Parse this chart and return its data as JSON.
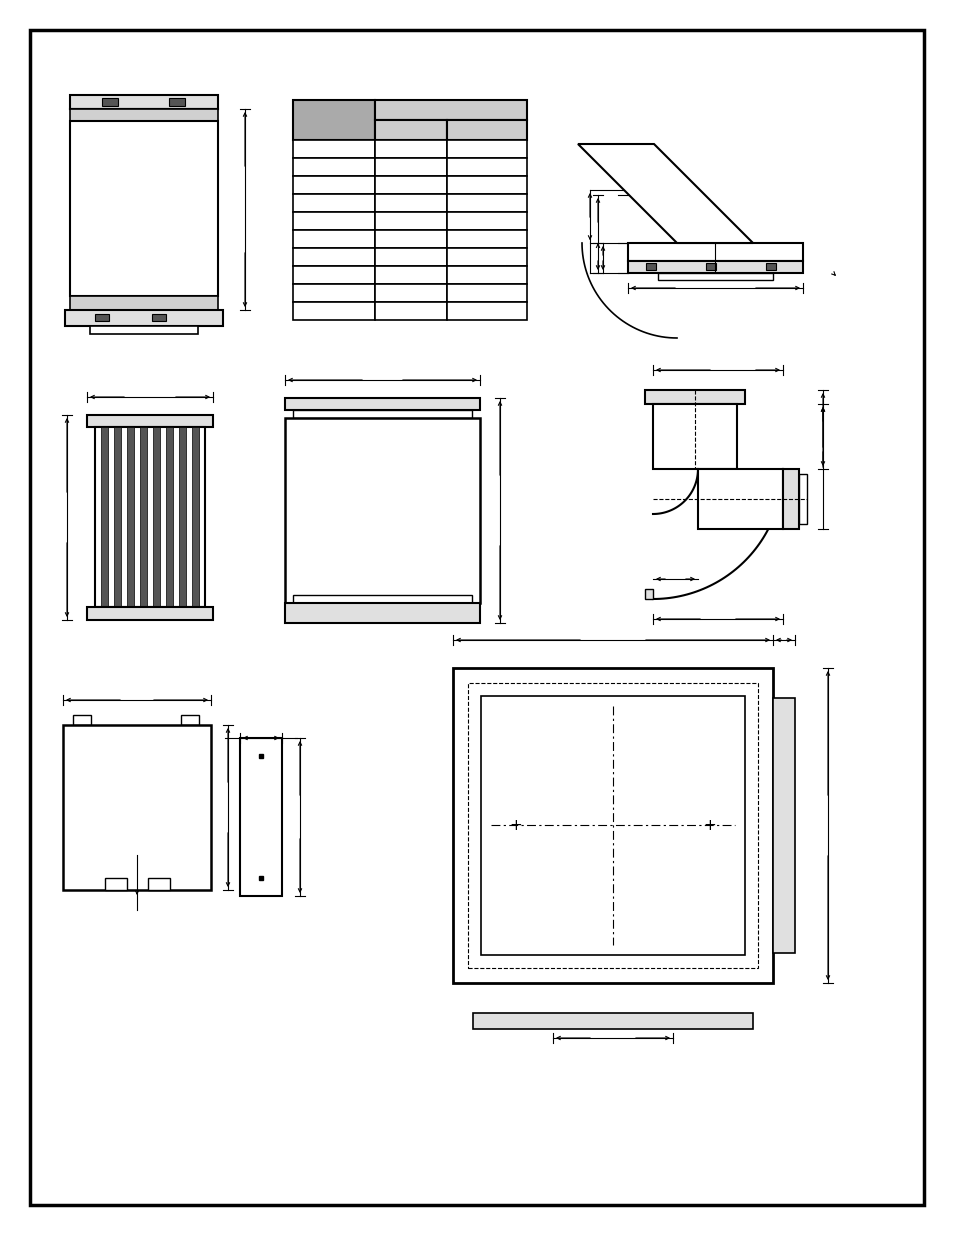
{
  "page_bg": "#ffffff",
  "border_color": "#000000",
  "line_color": "#000000",
  "gray_dark": "#aaaaaa",
  "gray_light": "#cccccc",
  "gray_fill": "#e0e0e0",
  "figsize": [
    9.54,
    12.35
  ],
  "dpi": 100
}
